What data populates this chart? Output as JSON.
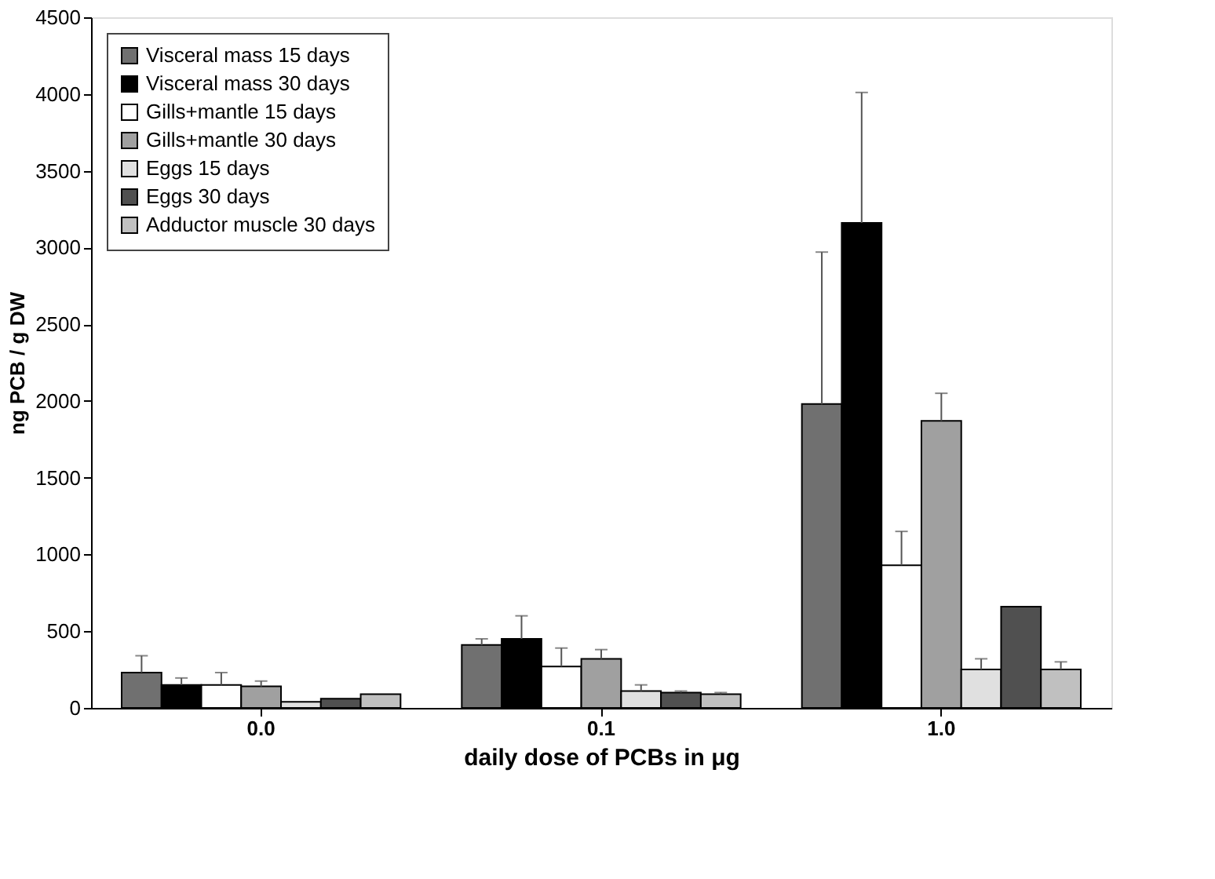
{
  "chart_data": {
    "type": "bar",
    "xlabel": "daily dose of PCBs in μg",
    "ylabel": "ng PCB / g DW",
    "categories": [
      "0.0",
      "0.1",
      "1.0"
    ],
    "series": [
      {
        "name": "Visceral mass 15 days",
        "color": "#707070",
        "values": [
          230,
          410,
          1980
        ],
        "errors": [
          [
            230,
            340
          ],
          [
            410,
            450
          ],
          [
            1980,
            2970
          ]
        ]
      },
      {
        "name": "Visceral mass 30 days",
        "color": "#000000",
        "values": [
          150,
          450,
          3160
        ],
        "errors": [
          [
            150,
            195
          ],
          [
            450,
            600
          ],
          [
            3160,
            4010
          ]
        ]
      },
      {
        "name": "Gills+mantle 15 days",
        "color": "#ffffff",
        "values": [
          150,
          270,
          930
        ],
        "errors": [
          [
            150,
            230
          ],
          [
            270,
            390
          ],
          [
            930,
            1150
          ]
        ]
      },
      {
        "name": "Gills+mantle 30 days",
        "color": "#a0a0a0",
        "values": [
          140,
          320,
          1870
        ],
        "errors": [
          [
            140,
            175
          ],
          [
            320,
            380
          ],
          [
            1870,
            2050
          ]
        ]
      },
      {
        "name": "Eggs 15 days",
        "color": "#e0e0e0",
        "values": [
          40,
          110,
          250
        ],
        "errors": [
          null,
          [
            110,
            150
          ],
          [
            250,
            320
          ]
        ]
      },
      {
        "name": "Eggs 30 days",
        "color": "#505050",
        "values": [
          60,
          100,
          660
        ],
        "errors": [
          null,
          [
            100,
            110
          ],
          null
        ]
      },
      {
        "name": "Adductor muscle 30 days",
        "color": "#c0c0c0",
        "values": [
          90,
          90,
          250
        ],
        "errors": [
          null,
          [
            90,
            100
          ],
          [
            250,
            300
          ]
        ]
      }
    ],
    "ylim": [
      0,
      4500
    ],
    "yticks": [
      0,
      500,
      1000,
      1500,
      2000,
      2500,
      3000,
      3500,
      4000,
      4500
    ],
    "grid": false,
    "legend": "top left"
  }
}
